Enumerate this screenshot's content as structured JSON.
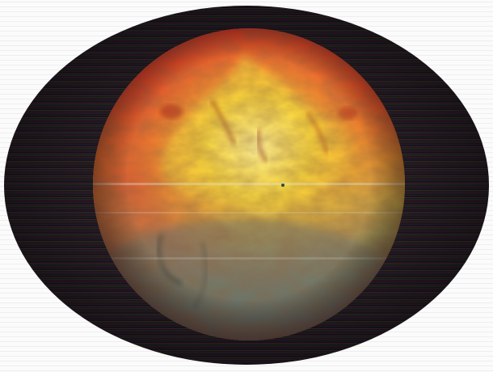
{
  "image": {
    "subject": "",
    "colors": {
      "background": "#fbfbfb",
      "outer_ellipse": "#1d1418",
      "sphere_top": "#e8382a",
      "sphere_glow": "#f4d83a",
      "sphere_bottom": "#6f7a6c"
    }
  }
}
